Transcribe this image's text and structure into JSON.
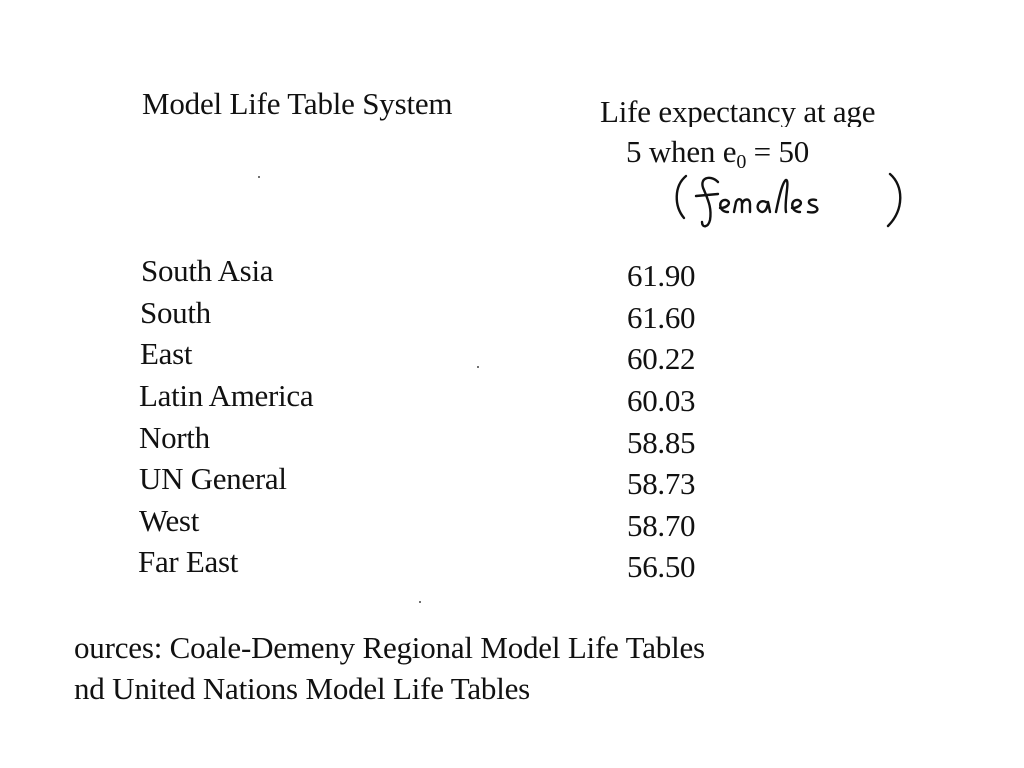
{
  "table": {
    "header_system": "Model Life Table System",
    "header_value_line1": "Life expectancy at age",
    "header_value_line2_prefix": "5 when e",
    "header_value_line2_subscript": "0",
    "header_value_line2_suffix": " = 50",
    "handwritten_note": "(females)",
    "rows": [
      {
        "system": "South Asia",
        "value": "61.90"
      },
      {
        "system": "South",
        "value": "61.60"
      },
      {
        "system": "East",
        "value": "60.22"
      },
      {
        "system": "Latin America",
        "value": "60.03"
      },
      {
        "system": "North",
        "value": "58.85"
      },
      {
        "system": "UN General",
        "value": "58.73"
      },
      {
        "system": "West",
        "value": "58.70"
      },
      {
        "system": "Far East",
        "value": "56.50"
      }
    ]
  },
  "sources": {
    "line1": "ources: Coale-Demeny Regional Model Life Tables",
    "line2": "nd United Nations Model Life Tables"
  }
}
